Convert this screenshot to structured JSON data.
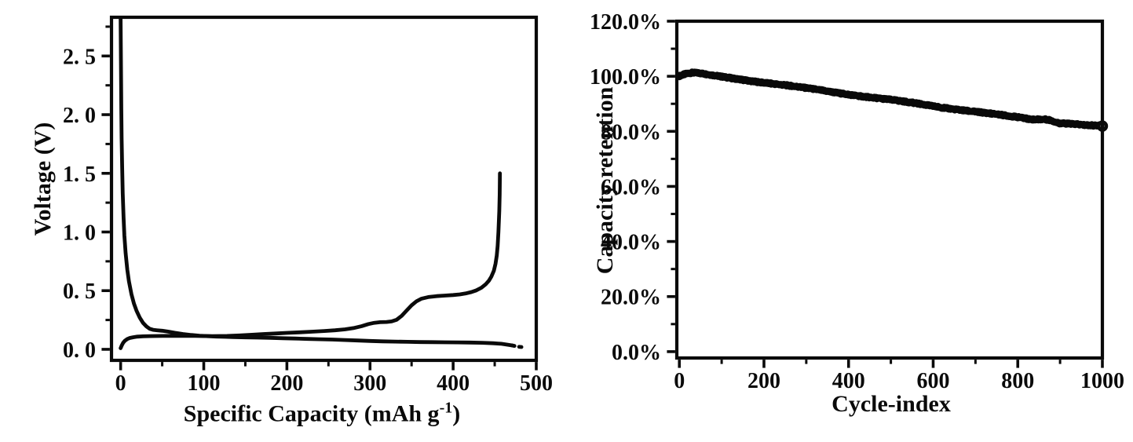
{
  "page": {
    "background": "#ffffff",
    "ink_color": "#0a0a0a",
    "description": "Two battery performance plots: galvanostatic charge/discharge voltage profile (left) and cycling capacity retention (right)"
  },
  "chart_data": [
    {
      "id": "voltage-capacity",
      "type": "line",
      "title": "",
      "xlabel": "Specific Capacity (mAh g-1)",
      "xlabel_parts": {
        "main": "Specific Capacity (mAh g",
        "sup": "-1",
        "close": ")"
      },
      "ylabel": "Voltage (V)",
      "xlim": [
        -11,
        500
      ],
      "ylim": [
        -0.094,
        2.83
      ],
      "grid": false,
      "legend": null,
      "line_color": "#0a0a0a",
      "line_width": 4.8,
      "x_ticks": [
        0,
        100,
        200,
        300,
        400,
        500
      ],
      "x_tick_labels": [
        "0",
        "100",
        "200",
        "300",
        "400",
        "500"
      ],
      "x_minor_ticks": [
        50,
        150,
        250,
        350,
        450
      ],
      "y_ticks": [
        0,
        0.5,
        1.0,
        1.5,
        2.0,
        2.5
      ],
      "y_tick_labels": [
        "0. 0",
        "0. 5",
        "1. 0",
        "1. 5",
        "2. 0",
        "2. 5"
      ],
      "y_minor_ticks": [
        0.25,
        0.75,
        1.25,
        1.75,
        2.25,
        2.75
      ],
      "series": [
        {
          "name": "discharge",
          "dashed": false,
          "points": [
            [
              0,
              2.83
            ],
            [
              0.4,
              2.4
            ],
            [
              0.8,
              2.05
            ],
            [
              1.2,
              1.8
            ],
            [
              1.8,
              1.55
            ],
            [
              2.5,
              1.33
            ],
            [
              3.5,
              1.12
            ],
            [
              4.5,
              0.97
            ],
            [
              6,
              0.82
            ],
            [
              8,
              0.68
            ],
            [
              10,
              0.58
            ],
            [
              13,
              0.47
            ],
            [
              16,
              0.39
            ],
            [
              19,
              0.33
            ],
            [
              23,
              0.27
            ],
            [
              27,
              0.225
            ],
            [
              31,
              0.195
            ],
            [
              35,
              0.175
            ],
            [
              39,
              0.166
            ],
            [
              44,
              0.162
            ],
            [
              50,
              0.158
            ],
            [
              57,
              0.151
            ],
            [
              65,
              0.141
            ],
            [
              75,
              0.13
            ],
            [
              85,
              0.122
            ],
            [
              95,
              0.116
            ],
            [
              105,
              0.112
            ],
            [
              115,
              0.109
            ],
            [
              125,
              0.107
            ],
            [
              135,
              0.105
            ],
            [
              150,
              0.102
            ],
            [
              165,
              0.1
            ],
            [
              180,
              0.098
            ],
            [
              195,
              0.095
            ],
            [
              210,
              0.092
            ],
            [
              225,
              0.089
            ],
            [
              240,
              0.086
            ],
            [
              255,
              0.083
            ],
            [
              270,
              0.079
            ],
            [
              285,
              0.075
            ],
            [
              300,
              0.071
            ],
            [
              315,
              0.068
            ],
            [
              330,
              0.066
            ],
            [
              345,
              0.064
            ],
            [
              360,
              0.062
            ],
            [
              375,
              0.061
            ],
            [
              390,
              0.06
            ],
            [
              405,
              0.059
            ],
            [
              420,
              0.058
            ],
            [
              435,
              0.056
            ],
            [
              448,
              0.052
            ],
            [
              458,
              0.047
            ],
            [
              465,
              0.04
            ],
            [
              471,
              0.033
            ]
          ]
        },
        {
          "name": "discharge-tail",
          "dashed": true,
          "points": [
            [
              471,
              0.033
            ],
            [
              475,
              0.027
            ],
            [
              479,
              0.022
            ],
            [
              483,
              0.019
            ],
            [
              487,
              0.017
            ]
          ]
        },
        {
          "name": "charge",
          "dashed": false,
          "points": [
            [
              0,
              0.01
            ],
            [
              1.5,
              0.035
            ],
            [
              3,
              0.055
            ],
            [
              5,
              0.072
            ],
            [
              8,
              0.088
            ],
            [
              11,
              0.097
            ],
            [
              15,
              0.103
            ],
            [
              20,
              0.108
            ],
            [
              27,
              0.111
            ],
            [
              36,
              0.113
            ],
            [
              50,
              0.114
            ],
            [
              70,
              0.1145
            ],
            [
              90,
              0.114
            ],
            [
              110,
              0.113
            ],
            [
              128,
              0.114
            ],
            [
              143,
              0.118
            ],
            [
              158,
              0.124
            ],
            [
              172,
              0.13
            ],
            [
              186,
              0.135
            ],
            [
              200,
              0.14
            ],
            [
              215,
              0.145
            ],
            [
              230,
              0.15
            ],
            [
              245,
              0.156
            ],
            [
              258,
              0.162
            ],
            [
              270,
              0.17
            ],
            [
              280,
              0.181
            ],
            [
              290,
              0.198
            ],
            [
              298,
              0.215
            ],
            [
              305,
              0.226
            ],
            [
              312,
              0.231
            ],
            [
              320,
              0.233
            ],
            [
              326,
              0.238
            ],
            [
              332,
              0.252
            ],
            [
              338,
              0.285
            ],
            [
              344,
              0.33
            ],
            [
              350,
              0.375
            ],
            [
              356,
              0.41
            ],
            [
              362,
              0.432
            ],
            [
              370,
              0.445
            ],
            [
              380,
              0.453
            ],
            [
              390,
              0.458
            ],
            [
              400,
              0.463
            ],
            [
              408,
              0.468
            ],
            [
              415,
              0.476
            ],
            [
              422,
              0.488
            ],
            [
              428,
              0.503
            ],
            [
              434,
              0.525
            ],
            [
              439,
              0.553
            ],
            [
              443,
              0.585
            ],
            [
              446,
              0.62
            ],
            [
              449,
              0.67
            ],
            [
              451,
              0.73
            ],
            [
              452.5,
              0.8
            ],
            [
              453.5,
              0.88
            ],
            [
              454.5,
              1.0
            ],
            [
              455.5,
              1.18
            ],
            [
              456,
              1.32
            ],
            [
              456.3,
              1.5
            ]
          ]
        }
      ]
    },
    {
      "id": "capacity-retention",
      "type": "scatter",
      "title": "",
      "xlabel": "Cycle-index",
      "ylabel": "Capacity retention",
      "xlim": [
        -6,
        1000
      ],
      "ylim": [
        -2.31,
        120
      ],
      "grid": false,
      "legend": null,
      "marker_color": "#0a0a0a",
      "x_ticks": [
        0,
        200,
        400,
        600,
        800,
        1000
      ],
      "x_tick_labels": [
        "0",
        "200",
        "400",
        "600",
        "800",
        "1000"
      ],
      "x_minor_ticks": [
        100,
        300,
        500,
        700,
        900
      ],
      "y_ticks": [
        0,
        20,
        40,
        60,
        80,
        100,
        120
      ],
      "y_tick_labels": [
        "0.0%",
        "20.0%",
        "40.0%",
        "60.0%",
        "80.0%",
        "100.0%",
        "120.0%"
      ],
      "y_minor_ticks": [
        10,
        30,
        50,
        70,
        90,
        110
      ],
      "series": [
        {
          "name": "retention",
          "unit": "%",
          "n_points": 1001,
          "noise_amplitude": 0.35,
          "marker_radius": 4.2,
          "anchors": [
            [
              0,
              100.1
            ],
            [
              8,
              100.5
            ],
            [
              18,
              100.9
            ],
            [
              30,
              101.15
            ],
            [
              45,
              101.05
            ],
            [
              60,
              100.7
            ],
            [
              80,
              100.25
            ],
            [
              100,
              99.8
            ],
            [
              150,
              98.8
            ],
            [
              200,
              97.75
            ],
            [
              250,
              96.7
            ],
            [
              300,
              95.6
            ],
            [
              350,
              94.55
            ],
            [
              400,
              93.5
            ],
            [
              450,
              92.4
            ],
            [
              500,
              91.35
            ],
            [
              550,
              90.3
            ],
            [
              600,
              89.2
            ],
            [
              650,
              88.15
            ],
            [
              700,
              87.1
            ],
            [
              750,
              86.05
            ],
            [
              780,
              85.45
            ],
            [
              800,
              85.1
            ],
            [
              815,
              84.8
            ],
            [
              830,
              84.45
            ],
            [
              842,
              84.4
            ],
            [
              855,
              84.5
            ],
            [
              868,
              84.45
            ],
            [
              880,
              84.1
            ],
            [
              890,
              83.4
            ],
            [
              900,
              83.0
            ],
            [
              912,
              82.9
            ],
            [
              925,
              82.75
            ],
            [
              940,
              82.5
            ],
            [
              955,
              82.2
            ],
            [
              970,
              82.05
            ],
            [
              985,
              81.95
            ],
            [
              1000,
              81.9
            ]
          ]
        }
      ],
      "end_marker": {
        "x": 1000,
        "y": 81.9,
        "style": "open-circle",
        "radius": 7.2
      }
    }
  ]
}
